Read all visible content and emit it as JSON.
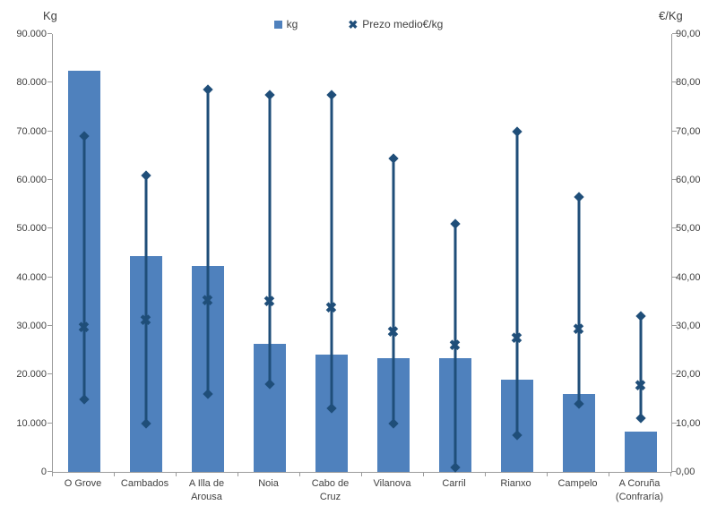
{
  "legend": {
    "kg_label": "kg",
    "price_label": "Prezo medio€/kg"
  },
  "icons": {
    "bar_swatch": "square",
    "x_marker": "✖",
    "hilo_end_marker": "diamond"
  },
  "colors": {
    "bar": "#4F81BD",
    "line_and_markers": "#1F4E79",
    "axis": "#9B9B9B",
    "text": "#404040"
  },
  "chart_data": {
    "type": "bar",
    "subtype": "combo: vertical bars (kg, left axis) + high-low range lines with diamond ends and X average-price markers (€/kg, right axis)",
    "title": "",
    "categories": [
      "O Grove",
      "Cambados",
      "A Illa de\nArousa",
      "Noia",
      "Cabo de\nCruz",
      "Vilanova",
      "Carril",
      "Rianxo",
      "Campelo",
      "A Coruña\n(Confraría)"
    ],
    "series": [
      {
        "name": "kg",
        "type": "bar",
        "axis": "left",
        "values": [
          82500,
          44400,
          42300,
          26300,
          24100,
          23400,
          23300,
          19000,
          16100,
          8300
        ]
      },
      {
        "name": "Prezo medio€/kg",
        "type": "high-low-average",
        "axis": "right",
        "high": [
          69,
          61,
          78.5,
          77.5,
          77.5,
          64.5,
          51,
          70,
          56.5,
          32
        ],
        "avg": [
          29.5,
          31,
          35,
          34.8,
          33.5,
          28.5,
          25.7,
          27.3,
          29,
          17.5
        ],
        "low": [
          15,
          10,
          16,
          18,
          13,
          10,
          1,
          7.5,
          14,
          11
        ]
      }
    ],
    "left_axis": {
      "title": "Kg",
      "min": 0,
      "max": 90000,
      "tick_step": 10000,
      "tick_labels": [
        "90.000",
        "80.000",
        "70.000",
        "60.000",
        "50.000",
        "40.000",
        "30.000",
        "20.000",
        "10.000",
        "0"
      ]
    },
    "right_axis": {
      "title": "€/Kg",
      "min": 0,
      "max": 90,
      "tick_step": 10,
      "tick_labels": [
        "90,00",
        "80,00",
        "70,00",
        "60,00",
        "50,00",
        "40,00",
        "30,00",
        "20,00",
        "10,00",
        "0,00"
      ]
    },
    "grid": false,
    "legend_position": "top-center"
  }
}
